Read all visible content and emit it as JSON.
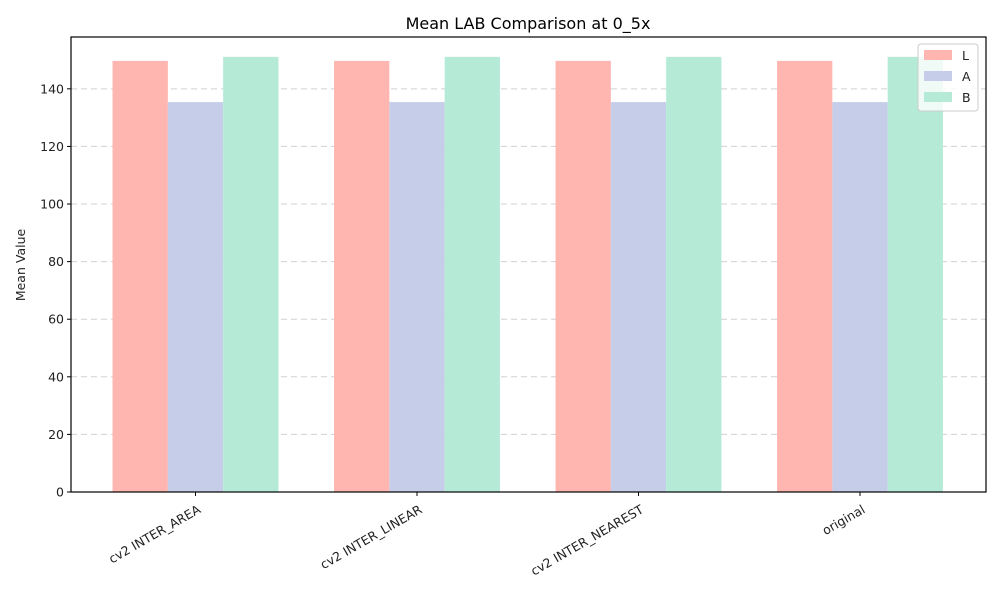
{
  "chart_data": {
    "type": "bar",
    "title": "Mean LAB Comparison at 0_5x",
    "xlabel": "",
    "ylabel": "Mean Value",
    "categories": [
      "cv2 INTER_AREA",
      "cv2 INTER_LINEAR",
      "cv2 INTER_NEAREST",
      "original"
    ],
    "series": [
      {
        "name": "L",
        "color": "#ffb6b0",
        "values": [
          149.7,
          149.7,
          149.7,
          149.7
        ]
      },
      {
        "name": "A",
        "color": "#c6cde9",
        "values": [
          135.4,
          135.4,
          135.4,
          135.4
        ]
      },
      {
        "name": "B",
        "color": "#b5ead7",
        "values": [
          151.1,
          151.1,
          151.1,
          151.1
        ]
      }
    ],
    "ylim": [
      0,
      158
    ],
    "yticks": [
      0,
      20,
      40,
      60,
      80,
      100,
      120,
      140
    ],
    "grid": {
      "y": true,
      "style": "dashed"
    },
    "legend": {
      "position": "upper right",
      "entries": [
        "L",
        "A",
        "B"
      ]
    },
    "xtick_rotation": 30
  }
}
